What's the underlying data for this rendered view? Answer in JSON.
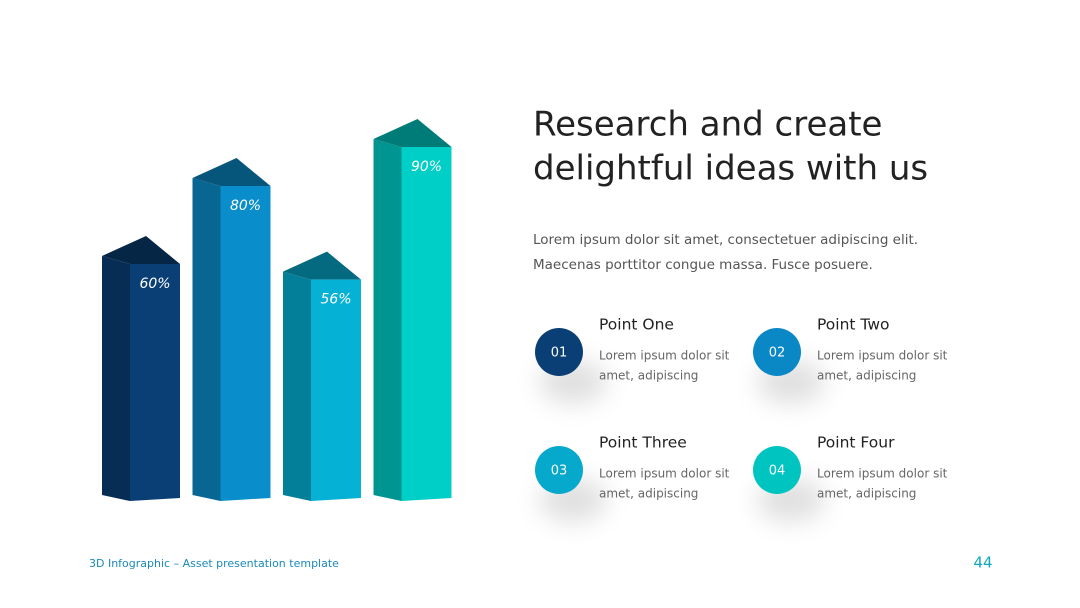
{
  "chart_data": {
    "type": "bar",
    "values": [
      60,
      80,
      56,
      90
    ],
    "value_labels": [
      "60%",
      "80%",
      "56%",
      "90%"
    ],
    "colors": [
      "#0a3f75",
      "#0a8dcb",
      "#06b1d6",
      "#00cfc8"
    ]
  },
  "slide": {
    "title": [
      "Research and create",
      "delightful ideas with us"
    ],
    "body": [
      "Lorem ipsum dolor sit amet, consectetuer adipiscing elit.",
      "Maecenas porttitor congue massa. Fusce posuere."
    ],
    "points": [
      {
        "number": "01",
        "title": "Point One",
        "body": [
          "Lorem ipsum dolor sit",
          "amet, adipiscing"
        ],
        "color": "#0a3f75"
      },
      {
        "number": "02",
        "title": "Point Two",
        "body": [
          "Lorem ipsum dolor sit",
          "amet, adipiscing"
        ],
        "color": "#0a88c6"
      },
      {
        "number": "03",
        "title": "Point Three",
        "body": [
          "Lorem ipsum dolor sit",
          "amet, adipiscing"
        ],
        "color": "#06a9cc"
      },
      {
        "number": "04",
        "title": "Point Four",
        "body": [
          "Lorem ipsum dolor sit",
          "amet, adipiscing"
        ],
        "color": "#00c4c0"
      }
    ],
    "footer": "3D Infographic – Asset presentation template",
    "page_number": "44"
  }
}
